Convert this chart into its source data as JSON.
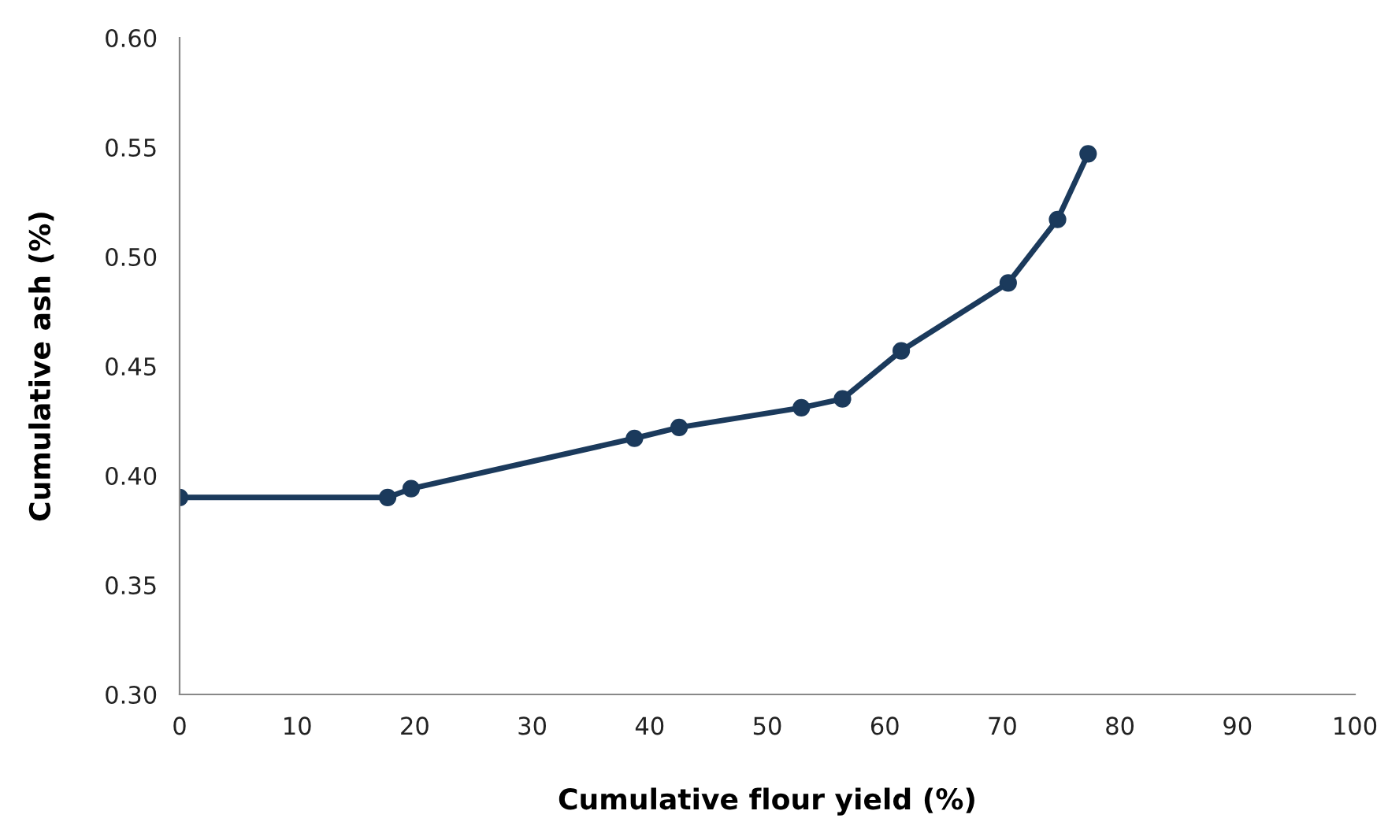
{
  "chart_data": {
    "type": "line",
    "xlabel": "Cumulative flour yield (%)",
    "ylabel": "Cumulative ash (%)",
    "x": [
      0,
      17.7,
      19.7,
      38.7,
      42.5,
      52.9,
      56.4,
      61.4,
      70.5,
      74.7,
      77.3
    ],
    "series": [
      {
        "color": "#1b3a5c",
        "values": [
          0.39,
          0.39,
          0.394,
          0.417,
          0.422,
          0.431,
          0.435,
          0.457,
          0.488,
          0.517,
          0.547
        ]
      }
    ],
    "xlim": [
      0,
      100
    ],
    "xticks": [
      0,
      10,
      20,
      30,
      40,
      50,
      60,
      70,
      80,
      90,
      100
    ],
    "ylim": [
      0.3,
      0.6
    ],
    "yticks": [
      {
        "value": 0.3,
        "label": "0.30"
      },
      {
        "value": 0.35,
        "label": "0.35"
      },
      {
        "value": 0.4,
        "label": "0.40"
      },
      {
        "value": 0.45,
        "label": "0.45"
      },
      {
        "value": 0.5,
        "label": "0.50"
      },
      {
        "value": 0.55,
        "label": "0.55"
      },
      {
        "value": 0.6,
        "label": "0.60"
      }
    ],
    "marker": "circle",
    "line_style": "solid"
  }
}
